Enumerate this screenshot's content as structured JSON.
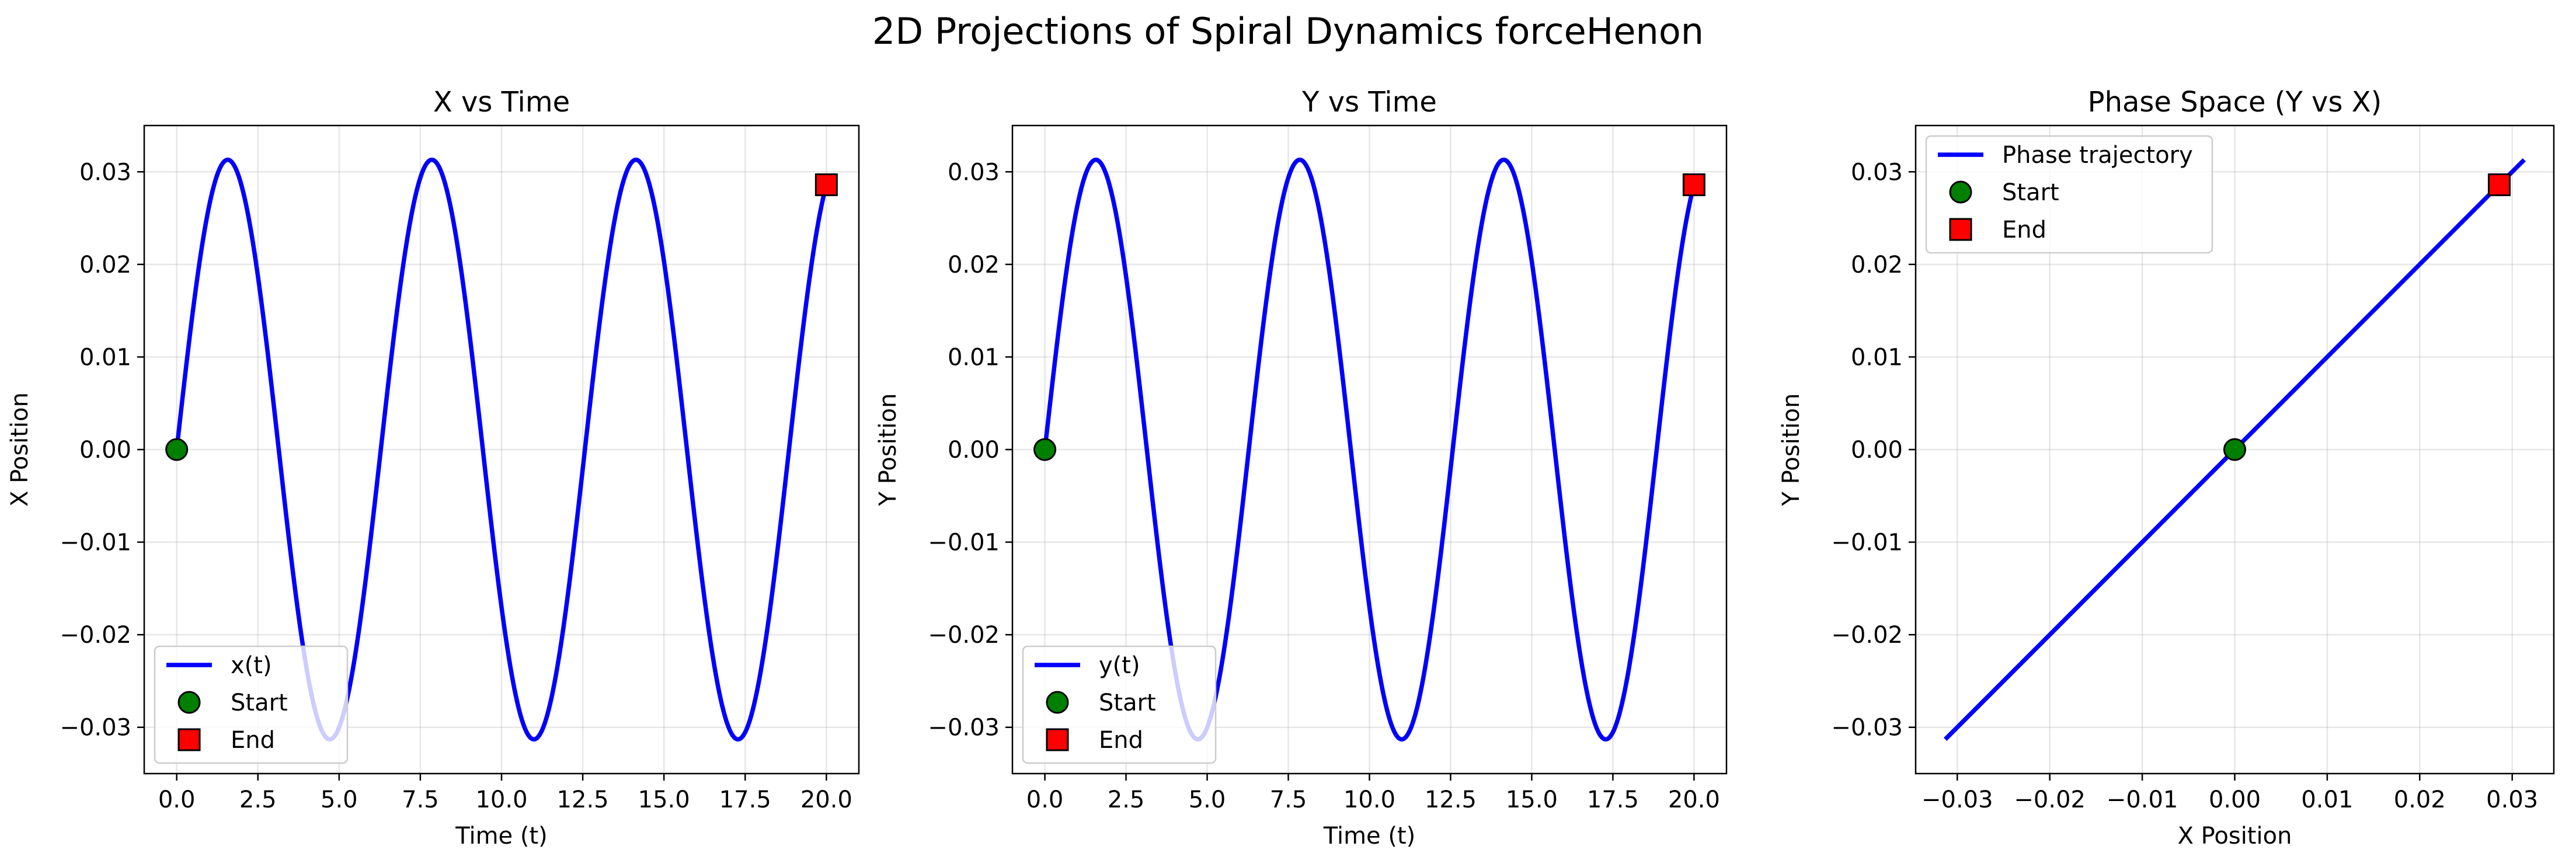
{
  "figure_title": "2D Projections of Spiral Dynamics forceHenon",
  "chart_data": [
    {
      "type": "line",
      "title": "X vs Time",
      "xlabel": "Time (t)",
      "ylabel": "X Position",
      "xlim": [
        -1.0,
        21.0
      ],
      "ylim": [
        -0.035,
        0.035
      ],
      "xticks": [
        0.0,
        2.5,
        5.0,
        7.5,
        10.0,
        12.5,
        15.0,
        17.5,
        20.0
      ],
      "xtick_labels": [
        "0.0",
        "2.5",
        "5.0",
        "7.5",
        "10.0",
        "12.5",
        "15.0",
        "17.5",
        "20.0"
      ],
      "yticks": [
        -0.03,
        -0.02,
        -0.01,
        0.0,
        0.01,
        0.02,
        0.03
      ],
      "ytick_labels": [
        "−0.03",
        "−0.02",
        "−0.01",
        "0.00",
        "0.01",
        "0.02",
        "0.03"
      ],
      "grid": true,
      "legend_position": "lower-left",
      "series": [
        {
          "name": "x(t)",
          "kind": "line",
          "color": "#0000ff",
          "function": "0.0313*sin(t)",
          "t_range": [
            0,
            20
          ],
          "approx_points": {
            "x": [
              0,
              1.57,
              4.71,
              7.85,
              11.0,
              14.14,
              17.28,
              20.0
            ],
            "y": [
              0.0,
              0.0313,
              -0.0313,
              0.0313,
              -0.0313,
              0.0313,
              -0.0313,
              0.0286
            ]
          }
        },
        {
          "name": "Start",
          "kind": "marker",
          "marker": "circle",
          "color": "#008000",
          "x": 0.0,
          "y": 0.0
        },
        {
          "name": "End",
          "kind": "marker",
          "marker": "square",
          "color": "#ff0000",
          "x": 20.0,
          "y": 0.0286
        }
      ]
    },
    {
      "type": "line",
      "title": "Y vs Time",
      "xlabel": "Time (t)",
      "ylabel": "Y Position",
      "xlim": [
        -1.0,
        21.0
      ],
      "ylim": [
        -0.035,
        0.035
      ],
      "xticks": [
        0.0,
        2.5,
        5.0,
        7.5,
        10.0,
        12.5,
        15.0,
        17.5,
        20.0
      ],
      "xtick_labels": [
        "0.0",
        "2.5",
        "5.0",
        "7.5",
        "10.0",
        "12.5",
        "15.0",
        "17.5",
        "20.0"
      ],
      "yticks": [
        -0.03,
        -0.02,
        -0.01,
        0.0,
        0.01,
        0.02,
        0.03
      ],
      "ytick_labels": [
        "−0.03",
        "−0.02",
        "−0.01",
        "0.00",
        "0.01",
        "0.02",
        "0.03"
      ],
      "grid": true,
      "legend_position": "lower-left",
      "series": [
        {
          "name": "y(t)",
          "kind": "line",
          "color": "#0000ff",
          "function": "0.0313*sin(t)",
          "t_range": [
            0,
            20
          ],
          "approx_points": {
            "x": [
              0,
              1.57,
              4.71,
              7.85,
              11.0,
              14.14,
              17.28,
              20.0
            ],
            "y": [
              0.0,
              0.0313,
              -0.0313,
              0.0313,
              -0.0313,
              0.0313,
              -0.0313,
              0.0286
            ]
          }
        },
        {
          "name": "Start",
          "kind": "marker",
          "marker": "circle",
          "color": "#008000",
          "x": 0.0,
          "y": 0.0
        },
        {
          "name": "End",
          "kind": "marker",
          "marker": "square",
          "color": "#ff0000",
          "x": 20.0,
          "y": 0.0286
        }
      ]
    },
    {
      "type": "line",
      "title": "Phase Space (Y vs X)",
      "xlabel": "X Position",
      "ylabel": "Y Position",
      "xlim": [
        -0.0345,
        0.0345
      ],
      "ylim": [
        -0.035,
        0.035
      ],
      "xticks": [
        -0.03,
        -0.02,
        -0.01,
        0.0,
        0.01,
        0.02,
        0.03
      ],
      "xtick_labels": [
        "−0.03",
        "−0.02",
        "−0.01",
        "0.00",
        "0.01",
        "0.02",
        "0.03"
      ],
      "yticks": [
        -0.03,
        -0.02,
        -0.01,
        0.0,
        0.01,
        0.02,
        0.03
      ],
      "ytick_labels": [
        "−0.03",
        "−0.02",
        "−0.01",
        "0.00",
        "0.01",
        "0.02",
        "0.03"
      ],
      "grid": true,
      "legend_position": "upper-left",
      "series": [
        {
          "name": "Phase trajectory",
          "kind": "line",
          "color": "#0000ff",
          "x": [
            -0.0313,
            0.0313
          ],
          "y": [
            -0.0313,
            0.0313
          ]
        },
        {
          "name": "Start",
          "kind": "marker",
          "marker": "circle",
          "color": "#008000",
          "x": 0.0,
          "y": 0.0
        },
        {
          "name": "End",
          "kind": "marker",
          "marker": "square",
          "color": "#ff0000",
          "x": 0.0286,
          "y": 0.0286
        }
      ]
    }
  ]
}
